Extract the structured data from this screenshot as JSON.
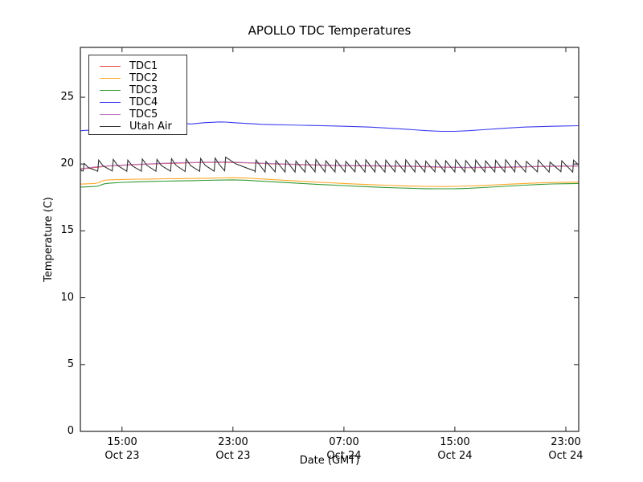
{
  "chart_data": {
    "type": "line",
    "title": "APOLLO TDC Temperatures",
    "xlabel": "Date (GMT)",
    "ylabel": "Temperature (C)",
    "x_unit": "hours since Oct 23 00:00 GMT",
    "xlim": [
      12,
      47.93
    ],
    "ylim": [
      0,
      28.73
    ],
    "grid": false,
    "legend_position": "upper-left",
    "frame_color": "#333333",
    "xticks": [
      {
        "t": 15,
        "time": "15:00",
        "date": "Oct 23"
      },
      {
        "t": 23,
        "time": "23:00",
        "date": "Oct 23"
      },
      {
        "t": 31,
        "time": "07:00",
        "date": "Oct 24"
      },
      {
        "t": 39,
        "time": "15:00",
        "date": "Oct 24"
      },
      {
        "t": 47,
        "time": "23:00",
        "date": "Oct 24"
      }
    ],
    "yticks": [
      {
        "v": 0,
        "label": "0"
      },
      {
        "v": 5,
        "label": "5"
      },
      {
        "v": 10,
        "label": "10"
      },
      {
        "v": 15,
        "label": "15"
      },
      {
        "v": 20,
        "label": "20"
      },
      {
        "v": 25,
        "label": "25"
      }
    ],
    "series": [
      {
        "name": "TDC1",
        "color": "#e8413c",
        "points": [
          [
            12,
            19.63
          ],
          [
            14,
            19.85
          ],
          [
            16,
            19.96
          ],
          [
            18,
            20.04
          ],
          [
            20,
            20.1
          ],
          [
            22,
            20.14
          ],
          [
            24,
            20.09
          ],
          [
            26,
            20.01
          ],
          [
            28,
            19.95
          ],
          [
            30,
            19.9
          ],
          [
            32,
            19.87
          ],
          [
            34,
            19.85
          ],
          [
            36,
            19.82
          ],
          [
            38,
            19.77
          ],
          [
            40,
            19.73
          ],
          [
            42,
            19.75
          ],
          [
            44,
            19.79
          ],
          [
            46,
            19.83
          ],
          [
            47.9,
            19.85
          ]
        ]
      },
      {
        "name": "TDC2",
        "color": "#ffa726",
        "points": [
          [
            12,
            18.5
          ],
          [
            13,
            18.55
          ],
          [
            13.3,
            18.6
          ],
          [
            13.7,
            18.78
          ],
          [
            14,
            18.82
          ],
          [
            15,
            18.85
          ],
          [
            16,
            18.87
          ],
          [
            17,
            18.88
          ],
          [
            18,
            18.9
          ],
          [
            19,
            18.91
          ],
          [
            20,
            18.92
          ],
          [
            21,
            18.94
          ],
          [
            22,
            18.96
          ],
          [
            23,
            18.98
          ],
          [
            24,
            18.95
          ],
          [
            25,
            18.89
          ],
          [
            26,
            18.83
          ],
          [
            27,
            18.77
          ],
          [
            28,
            18.71
          ],
          [
            29,
            18.65
          ],
          [
            30,
            18.6
          ],
          [
            31,
            18.55
          ],
          [
            32,
            18.5
          ],
          [
            33,
            18.46
          ],
          [
            34,
            18.42
          ],
          [
            35,
            18.38
          ],
          [
            36,
            18.35
          ],
          [
            37,
            18.33
          ],
          [
            38,
            18.32
          ],
          [
            39,
            18.33
          ],
          [
            40,
            18.36
          ],
          [
            41,
            18.4
          ],
          [
            42,
            18.45
          ],
          [
            43,
            18.5
          ],
          [
            44,
            18.55
          ],
          [
            45,
            18.59
          ],
          [
            46,
            18.62
          ],
          [
            47,
            18.64
          ],
          [
            47.9,
            18.65
          ]
        ]
      },
      {
        "name": "TDC3",
        "color": "#359a35",
        "points": [
          [
            12,
            18.28
          ],
          [
            13,
            18.32
          ],
          [
            13.3,
            18.36
          ],
          [
            13.7,
            18.52
          ],
          [
            14,
            18.56
          ],
          [
            15,
            18.63
          ],
          [
            16,
            18.67
          ],
          [
            17,
            18.7
          ],
          [
            18,
            18.72
          ],
          [
            19,
            18.74
          ],
          [
            20,
            18.76
          ],
          [
            21,
            18.78
          ],
          [
            22,
            18.8
          ],
          [
            23,
            18.82
          ],
          [
            24,
            18.79
          ],
          [
            25,
            18.73
          ],
          [
            26,
            18.67
          ],
          [
            27,
            18.61
          ],
          [
            28,
            18.55
          ],
          [
            29,
            18.49
          ],
          [
            30,
            18.44
          ],
          [
            31,
            18.39
          ],
          [
            32,
            18.34
          ],
          [
            33,
            18.29
          ],
          [
            34,
            18.25
          ],
          [
            35,
            18.21
          ],
          [
            36,
            18.18
          ],
          [
            37,
            18.16
          ],
          [
            38,
            18.15
          ],
          [
            39,
            18.16
          ],
          [
            40,
            18.19
          ],
          [
            41,
            18.24
          ],
          [
            42,
            18.3
          ],
          [
            43,
            18.36
          ],
          [
            44,
            18.42
          ],
          [
            45,
            18.47
          ],
          [
            46,
            18.51
          ],
          [
            47,
            18.53
          ],
          [
            47.9,
            18.55
          ]
        ]
      },
      {
        "name": "TDC4",
        "color": "#3b3bf0",
        "points": [
          [
            12,
            22.5
          ],
          [
            13,
            22.56
          ],
          [
            14,
            22.7
          ],
          [
            15,
            22.85
          ],
          [
            16,
            22.95
          ],
          [
            17,
            23.0
          ],
          [
            18,
            23.05
          ],
          [
            19,
            23.06
          ],
          [
            20,
            23.0
          ],
          [
            21,
            23.1
          ],
          [
            21.5,
            23.12
          ],
          [
            22,
            23.15
          ],
          [
            22.5,
            23.14
          ],
          [
            23,
            23.1
          ],
          [
            24,
            23.04
          ],
          [
            25,
            22.98
          ],
          [
            26,
            22.95
          ],
          [
            27,
            22.93
          ],
          [
            28,
            22.9
          ],
          [
            29,
            22.88
          ],
          [
            30,
            22.86
          ],
          [
            31,
            22.83
          ],
          [
            32,
            22.8
          ],
          [
            33,
            22.76
          ],
          [
            34,
            22.7
          ],
          [
            35,
            22.64
          ],
          [
            36,
            22.57
          ],
          [
            37,
            22.5
          ],
          [
            38,
            22.45
          ],
          [
            39,
            22.45
          ],
          [
            40,
            22.5
          ],
          [
            41,
            22.57
          ],
          [
            42,
            22.64
          ],
          [
            43,
            22.71
          ],
          [
            44,
            22.77
          ],
          [
            45,
            22.8
          ],
          [
            46,
            22.83
          ],
          [
            47,
            22.85
          ],
          [
            47.9,
            22.87
          ]
        ]
      },
      {
        "name": "TDC5",
        "color": "#bd7cc4",
        "points": [
          [
            12,
            19.65
          ],
          [
            13,
            19.78
          ],
          [
            14,
            19.87
          ],
          [
            15,
            19.93
          ],
          [
            16,
            19.98
          ],
          [
            17,
            20.02
          ],
          [
            18,
            20.06
          ],
          [
            19,
            20.1
          ],
          [
            20,
            20.12
          ],
          [
            21,
            20.14
          ],
          [
            22,
            20.16
          ],
          [
            23,
            20.15
          ],
          [
            24,
            20.11
          ],
          [
            25,
            20.07
          ],
          [
            26,
            20.03
          ],
          [
            27,
            20.0
          ],
          [
            28,
            19.97
          ],
          [
            29,
            19.94
          ],
          [
            30,
            19.92
          ],
          [
            31,
            19.9
          ],
          [
            32,
            19.89
          ],
          [
            33,
            19.88
          ],
          [
            34,
            19.87
          ],
          [
            35,
            19.86
          ],
          [
            36,
            19.84
          ],
          [
            37,
            19.82
          ],
          [
            38,
            19.79
          ],
          [
            39,
            19.76
          ],
          [
            40,
            19.75
          ],
          [
            41,
            19.76
          ],
          [
            42,
            19.77
          ],
          [
            43,
            19.79
          ],
          [
            44,
            19.81
          ],
          [
            45,
            19.83
          ],
          [
            46,
            19.85
          ],
          [
            47,
            19.86
          ],
          [
            47.9,
            19.87
          ]
        ]
      },
      {
        "name": "Utah Air",
        "color": "#333333",
        "points": [
          [
            12.0,
            19.62
          ],
          [
            12.1,
            19.5
          ],
          [
            12.2,
            19.48
          ],
          [
            12.27,
            20.05
          ],
          [
            12.6,
            19.72
          ],
          [
            13.25,
            19.47
          ],
          [
            13.32,
            20.3
          ],
          [
            13.65,
            19.85
          ],
          [
            14.3,
            19.48
          ],
          [
            14.37,
            20.35
          ],
          [
            14.7,
            19.88
          ],
          [
            15.35,
            19.46
          ],
          [
            15.42,
            20.3
          ],
          [
            15.75,
            19.86
          ],
          [
            16.4,
            19.47
          ],
          [
            16.47,
            20.38
          ],
          [
            16.8,
            19.9
          ],
          [
            17.45,
            19.46
          ],
          [
            17.52,
            20.35
          ],
          [
            17.85,
            19.88
          ],
          [
            18.5,
            19.47
          ],
          [
            18.57,
            20.4
          ],
          [
            18.9,
            19.9
          ],
          [
            19.55,
            19.45
          ],
          [
            19.62,
            20.38
          ],
          [
            19.95,
            19.88
          ],
          [
            20.6,
            19.46
          ],
          [
            20.67,
            20.42
          ],
          [
            21.0,
            19.9
          ],
          [
            21.65,
            19.47
          ],
          [
            21.72,
            20.45
          ],
          [
            22.05,
            19.92
          ],
          [
            22.4,
            19.5
          ],
          [
            22.47,
            20.52
          ],
          [
            23.2,
            20.02
          ],
          [
            24.0,
            19.7
          ],
          [
            24.55,
            19.5
          ],
          [
            24.6,
            19.42
          ],
          [
            24.66,
            20.3
          ],
          [
            25.32,
            19.4
          ],
          [
            25.38,
            20.2
          ],
          [
            26.04,
            19.42
          ],
          [
            26.1,
            20.26
          ],
          [
            26.76,
            19.4
          ],
          [
            26.82,
            20.3
          ],
          [
            27.48,
            19.41
          ],
          [
            27.54,
            20.22
          ],
          [
            28.2,
            19.4
          ],
          [
            28.26,
            20.28
          ],
          [
            28.92,
            19.42
          ],
          [
            28.98,
            20.34
          ],
          [
            29.64,
            19.4
          ],
          [
            29.7,
            20.25
          ],
          [
            30.36,
            19.41
          ],
          [
            30.42,
            20.3
          ],
          [
            31.08,
            19.4
          ],
          [
            31.14,
            20.2
          ],
          [
            31.8,
            19.42
          ],
          [
            31.86,
            20.28
          ],
          [
            32.52,
            19.4
          ],
          [
            32.58,
            20.32
          ],
          [
            33.24,
            19.41
          ],
          [
            33.3,
            20.24
          ],
          [
            33.96,
            19.4
          ],
          [
            34.02,
            20.3
          ],
          [
            34.68,
            19.42
          ],
          [
            34.74,
            20.26
          ],
          [
            35.4,
            19.4
          ],
          [
            35.46,
            20.32
          ],
          [
            36.12,
            19.41
          ],
          [
            36.18,
            20.28
          ],
          [
            36.84,
            19.4
          ],
          [
            36.9,
            20.22
          ],
          [
            37.56,
            19.42
          ],
          [
            37.62,
            20.3
          ],
          [
            38.28,
            19.4
          ],
          [
            38.34,
            20.25
          ],
          [
            39.0,
            19.41
          ],
          [
            39.06,
            20.32
          ],
          [
            39.72,
            19.4
          ],
          [
            39.78,
            20.27
          ],
          [
            40.44,
            19.42
          ],
          [
            40.5,
            20.3
          ],
          [
            41.16,
            19.4
          ],
          [
            41.22,
            20.24
          ],
          [
            41.88,
            19.41
          ],
          [
            41.94,
            20.28
          ],
          [
            42.6,
            19.4
          ],
          [
            42.66,
            20.32
          ],
          [
            43.32,
            19.42
          ],
          [
            43.38,
            20.26
          ],
          [
            44.1,
            19.4
          ],
          [
            44.16,
            20.2
          ],
          [
            44.95,
            19.42
          ],
          [
            45.01,
            20.3
          ],
          [
            45.8,
            19.4
          ],
          [
            45.86,
            20.15
          ],
          [
            46.65,
            19.43
          ],
          [
            46.71,
            20.25
          ],
          [
            47.5,
            19.4
          ],
          [
            47.56,
            20.3
          ],
          [
            47.9,
            19.95
          ]
        ]
      }
    ]
  }
}
